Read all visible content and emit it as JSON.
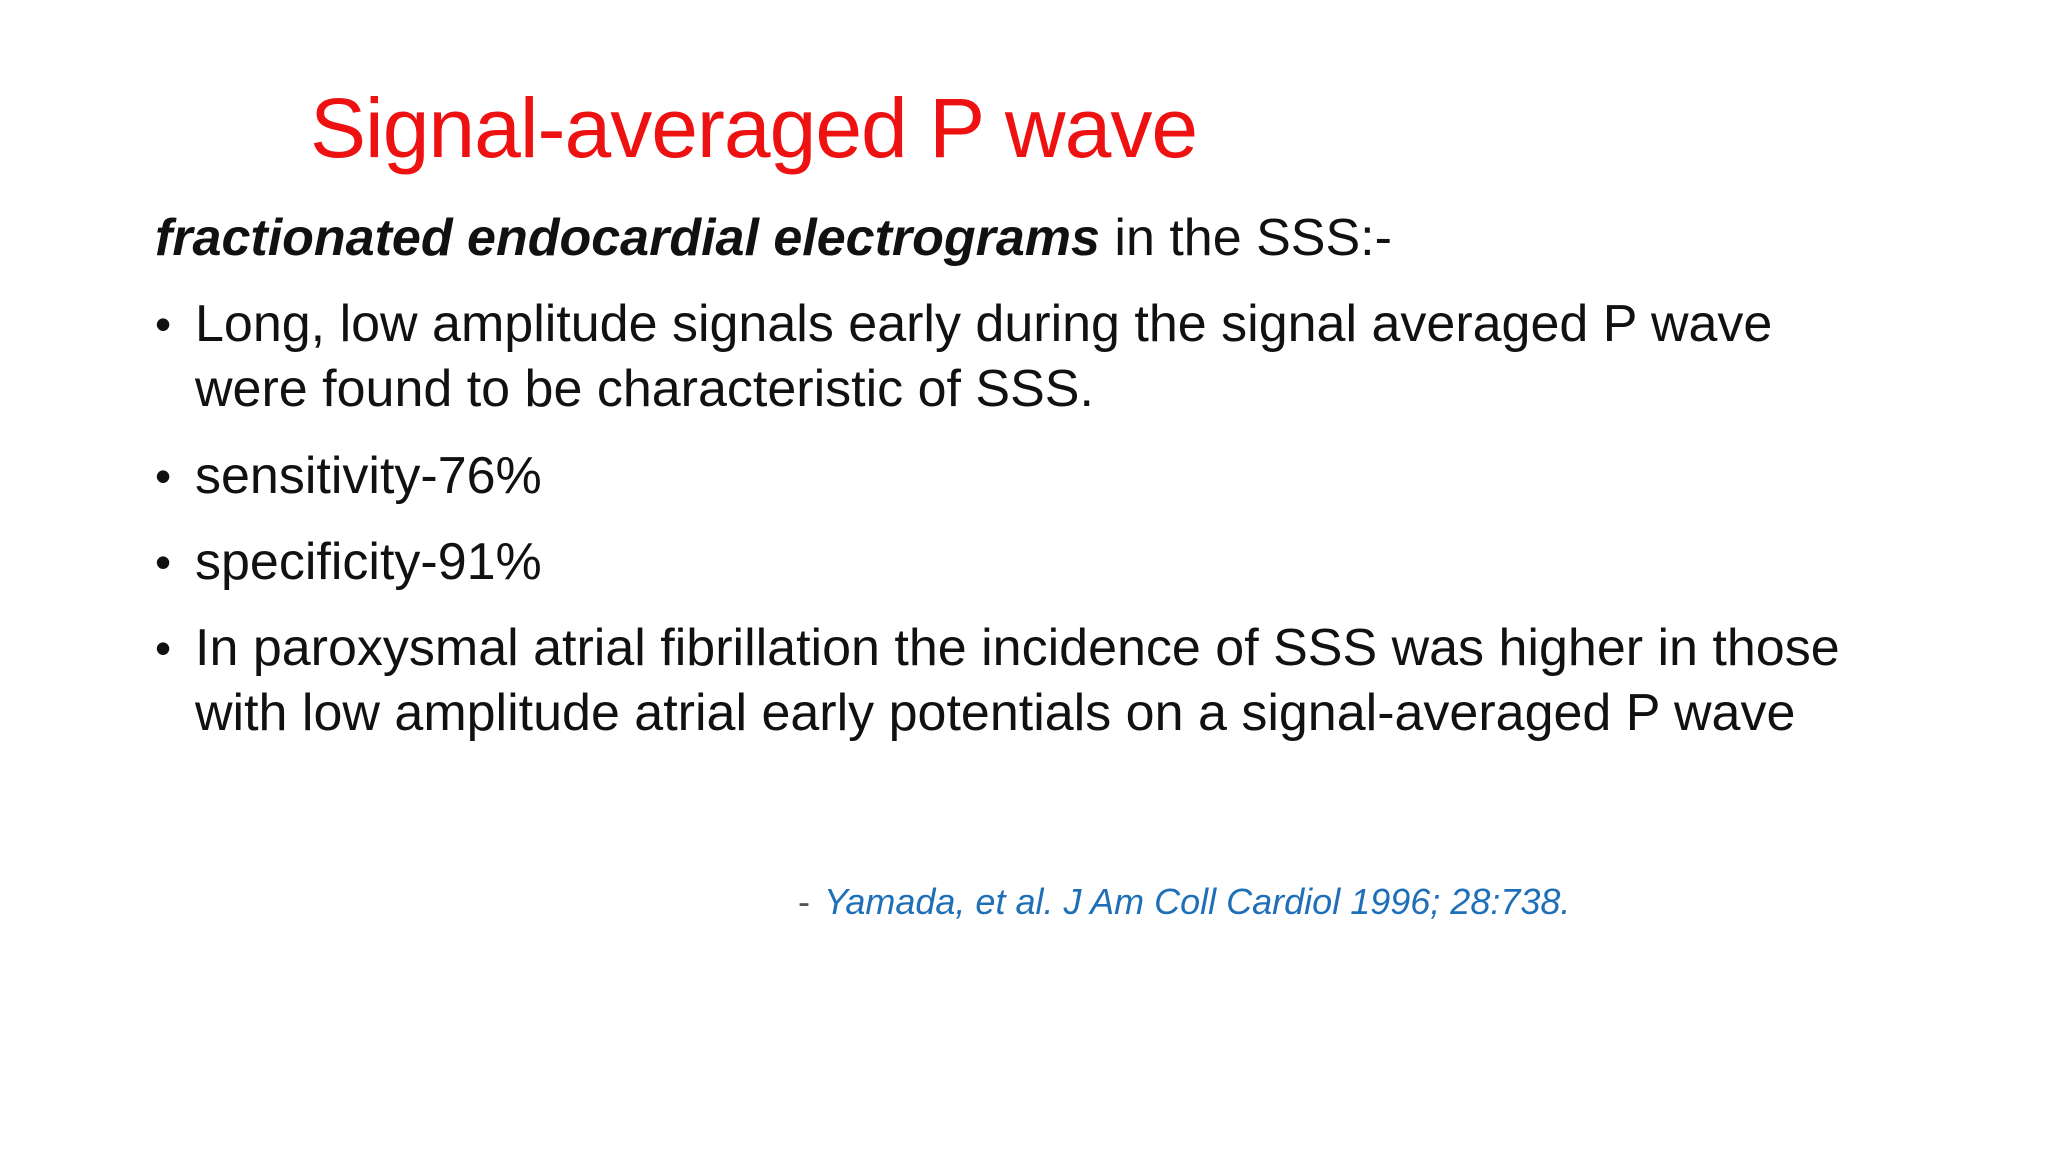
{
  "slide": {
    "title": "Signal-averaged P wave",
    "subtitle": {
      "emphasis": "fractionated endocardial electrograms",
      "rest": " in the SSS:-"
    },
    "bullets": [
      " Long, low amplitude signals early during the signal averaged P wave were found to be characteristic of SSS.",
      "sensitivity-76%",
      " specificity-91%",
      "In paroxysmal atrial fibrillation the incidence of SSS was higher in those with low amplitude atrial early potentials on a signal-averaged P wave"
    ],
    "bullet_symbol": "•",
    "citation": {
      "dash": "-",
      "reference": "Yamada, et al. J Am Coll Cardiol 1996; 28:738."
    }
  },
  "colors": {
    "title": "#ee1111",
    "body_text": "#111111",
    "citation": "#1f6fb8",
    "background": "#ffffff"
  }
}
